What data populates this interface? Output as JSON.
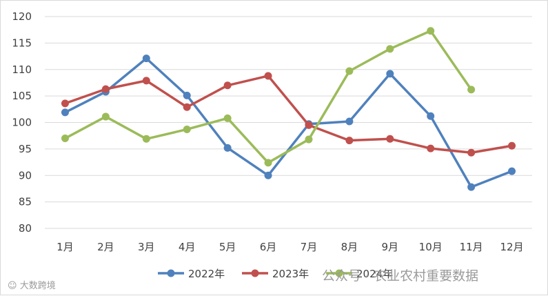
{
  "chart_data": {
    "type": "line",
    "categories": [
      "1月",
      "2月",
      "3月",
      "4月",
      "5月",
      "6月",
      "7月",
      "8月",
      "9月",
      "10月",
      "11月",
      "12月"
    ],
    "ylim": [
      80,
      120
    ],
    "yticks": [
      80,
      85,
      90,
      95,
      100,
      105,
      110,
      115,
      120
    ],
    "grid": true,
    "legend_position": "bottom",
    "series": [
      {
        "name": "2022年",
        "color": "#4f81bd",
        "values": [
          101.9,
          105.8,
          112.1,
          105.1,
          95.2,
          90.0,
          99.7,
          100.2,
          109.2,
          101.2,
          87.8,
          90.8
        ]
      },
      {
        "name": "2023年",
        "color": "#c0504d",
        "values": [
          103.6,
          106.3,
          107.9,
          102.9,
          107.0,
          108.8,
          99.5,
          96.6,
          96.9,
          95.1,
          94.3,
          95.6
        ]
      },
      {
        "name": "2024年",
        "color": "#9bbb59",
        "values": [
          97.0,
          101.1,
          96.9,
          98.7,
          100.8,
          92.4,
          96.8,
          109.7,
          113.9,
          117.3,
          106.2,
          null
        ]
      }
    ]
  },
  "watermarks": {
    "left": "大数跨境",
    "right": "公众号 · 农业农村重要数据"
  }
}
